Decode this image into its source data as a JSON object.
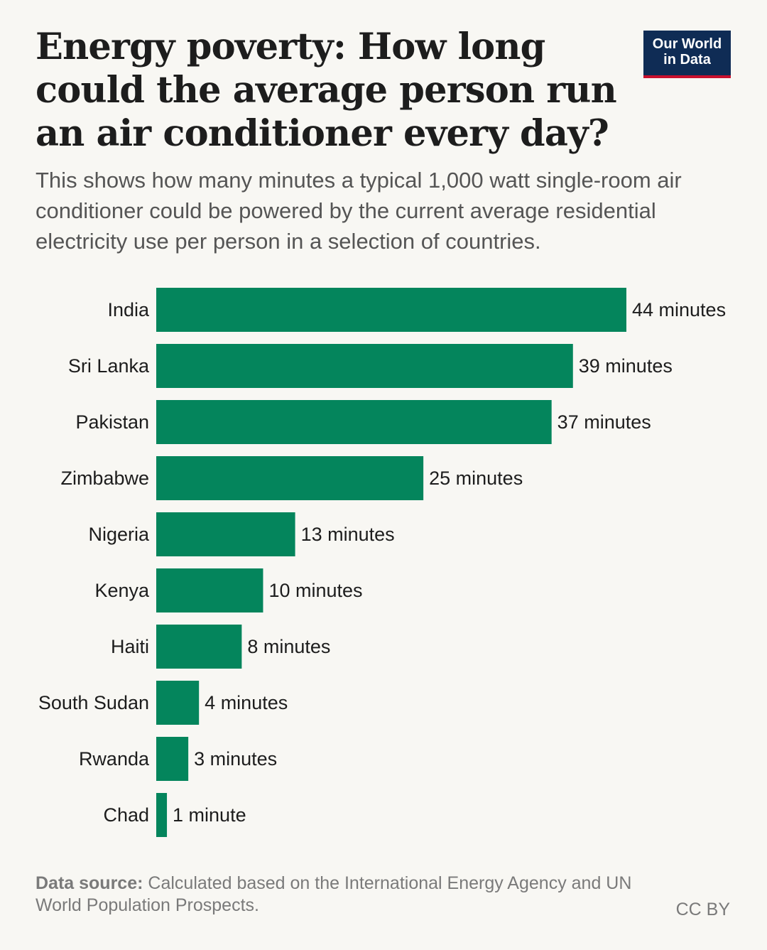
{
  "header": {
    "title": "Energy poverty: How long could the average person run an air conditioner every day?",
    "subtitle": "This shows how many minutes a typical 1,000 watt single-room air conditioner could be powered by the current average residential electricity use per person in a selection of countries.",
    "logo_line1": "Our World",
    "logo_line2": "in Data"
  },
  "footer": {
    "source_label": "Data source:",
    "source_text": " Calculated based on the International Energy Agency and UN World Population Prospects.",
    "license": "CC BY"
  },
  "colors": {
    "bar": "#04855c",
    "logo_bg": "#0f2c55",
    "logo_accent": "#c8102e"
  },
  "chart_data": {
    "type": "bar",
    "orientation": "horizontal",
    "title": "Energy poverty: How long could the average person run an air conditioner every day?",
    "xlabel": "",
    "ylabel": "",
    "unit": "minutes",
    "xlim": [
      0,
      44
    ],
    "grid": false,
    "categories": [
      "India",
      "Sri Lanka",
      "Pakistan",
      "Zimbabwe",
      "Nigeria",
      "Kenya",
      "Haiti",
      "South Sudan",
      "Rwanda",
      "Chad"
    ],
    "values": [
      44,
      39,
      37,
      25,
      13,
      10,
      8,
      4,
      3,
      1
    ],
    "value_labels": [
      "44 minutes",
      "39 minutes",
      "37 minutes",
      "25 minutes",
      "13 minutes",
      "10 minutes",
      "8 minutes",
      "4 minutes",
      "3 minutes",
      "1 minute"
    ]
  }
}
